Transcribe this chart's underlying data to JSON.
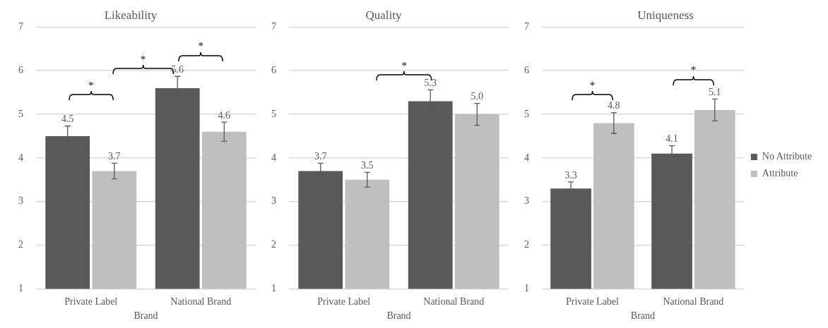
{
  "chart_data": [
    {
      "type": "bar",
      "title": "Likeability",
      "xlabel": "Brand",
      "categories": [
        "Private Label",
        "National Brand"
      ],
      "ylim": [
        1,
        7
      ],
      "yticks": [
        1,
        2,
        3,
        4,
        5,
        6,
        7
      ],
      "grid": "y",
      "legend": false,
      "annotations": [
        "*",
        "*",
        "*"
      ],
      "series": [
        {
          "color": "#595959",
          "values": [
            4.5,
            5.6
          ],
          "errors": [
            0.23,
            0.27
          ],
          "value_labels": [
            "4.5",
            "5.6"
          ]
        },
        {
          "color": "#bfbfbf",
          "values": [
            3.7,
            4.6
          ],
          "errors": [
            0.18,
            0.22
          ],
          "value_labels": [
            "3.7",
            "4.6"
          ]
        }
      ]
    },
    {
      "type": "bar",
      "title": "Quality",
      "xlabel": "Brand",
      "categories": [
        "Private Label",
        "National Brand"
      ],
      "ylim": [
        1,
        7
      ],
      "yticks": [
        1,
        2,
        3,
        4,
        5,
        6,
        7
      ],
      "grid": "y",
      "legend": false,
      "annotations": [
        "*"
      ],
      "series": [
        {
          "color": "#595959",
          "values": [
            3.7,
            5.3
          ],
          "errors": [
            0.18,
            0.26
          ],
          "value_labels": [
            "3.7",
            "5.3"
          ]
        },
        {
          "color": "#bfbfbf",
          "values": [
            3.5,
            5.0
          ],
          "errors": [
            0.17,
            0.25
          ],
          "value_labels": [
            "3.5",
            "5.0"
          ]
        }
      ]
    },
    {
      "type": "bar",
      "title": "Uniqueness",
      "xlabel": "Brand",
      "categories": [
        "Private Label",
        "National Brand"
      ],
      "ylim": [
        1,
        7
      ],
      "yticks": [
        1,
        2,
        3,
        4,
        5,
        6,
        7
      ],
      "grid": "y",
      "legend": "right",
      "annotations": [
        "*",
        "*"
      ],
      "series": [
        {
          "name": "No Attribute",
          "color": "#595959",
          "values": [
            3.3,
            4.1
          ],
          "errors": [
            0.15,
            0.18
          ],
          "value_labels": [
            "3.3",
            "4.1"
          ]
        },
        {
          "name": "Attribute",
          "color": "#bfbfbf",
          "values": [
            4.8,
            5.1
          ],
          "errors": [
            0.24,
            0.25
          ],
          "value_labels": [
            "4.8",
            "5.1"
          ]
        }
      ]
    }
  ]
}
